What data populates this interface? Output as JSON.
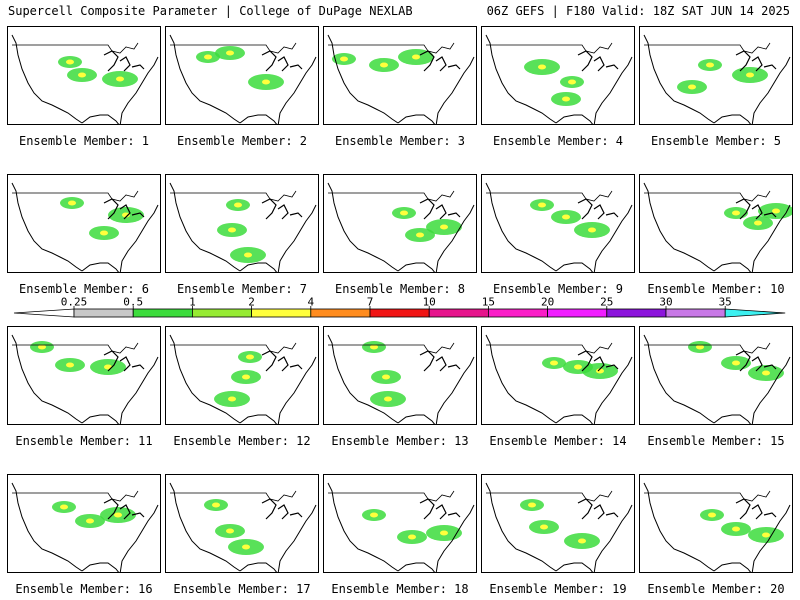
{
  "header": {
    "left": "Supercell Composite Parameter | College of DuPage NEXLAB",
    "right": "06Z GEFS | F180 Valid: 18Z SAT JUN 14 2025"
  },
  "members": [
    {
      "label": "Ensemble Member: 1"
    },
    {
      "label": "Ensemble Member: 2"
    },
    {
      "label": "Ensemble Member: 3"
    },
    {
      "label": "Ensemble Member: 4"
    },
    {
      "label": "Ensemble Member: 5"
    },
    {
      "label": "Ensemble Member: 6"
    },
    {
      "label": "Ensemble Member: 7"
    },
    {
      "label": "Ensemble Member: 8"
    },
    {
      "label": "Ensemble Member: 9"
    },
    {
      "label": "Ensemble Member: 10"
    },
    {
      "label": "Ensemble Member: 11"
    },
    {
      "label": "Ensemble Member: 12"
    },
    {
      "label": "Ensemble Member: 13"
    },
    {
      "label": "Ensemble Member: 14"
    },
    {
      "label": "Ensemble Member: 15"
    },
    {
      "label": "Ensemble Member: 16"
    },
    {
      "label": "Ensemble Member: 17"
    },
    {
      "label": "Ensemble Member: 18"
    },
    {
      "label": "Ensemble Member: 19"
    },
    {
      "label": "Ensemble Member: 20"
    }
  ],
  "legend": {
    "ticks": [
      "0.25",
      "0.5",
      "1",
      "2",
      "4",
      "7",
      "10",
      "15",
      "20",
      "25",
      "30",
      "35"
    ],
    "colors": [
      "#c8c8c8",
      "#3cdc3c",
      "#96eb32",
      "#ffff3c",
      "#ff8c1e",
      "#f01414",
      "#e6148c",
      "#fa1ec8",
      "#f01eff",
      "#8c14dc",
      "#c878e6",
      "#3cf0f0"
    ]
  }
}
